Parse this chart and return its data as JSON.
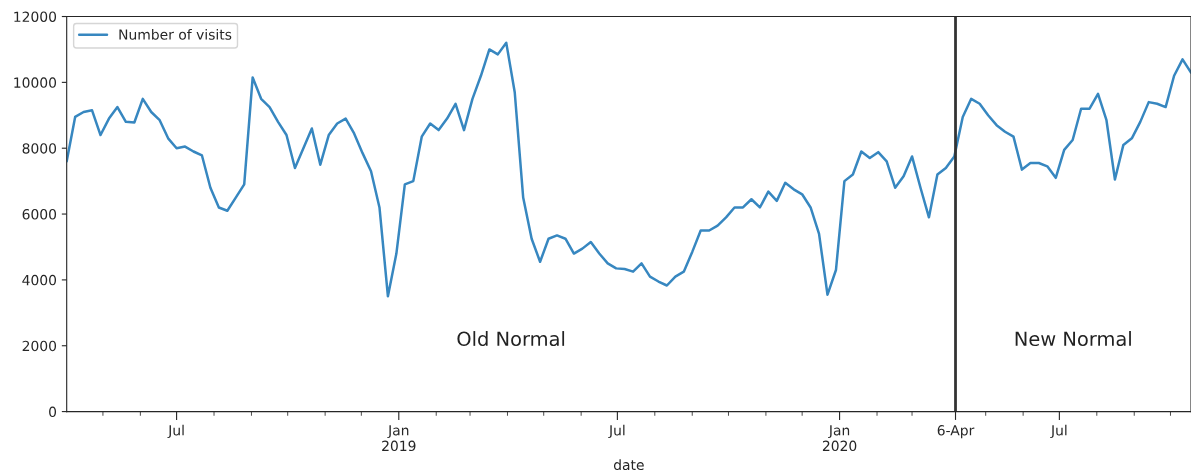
{
  "chart_data": {
    "type": "line",
    "xlabel": "date",
    "x": [
      "2018-04-01",
      "2018-04-08",
      "2018-04-15",
      "2018-04-22",
      "2018-04-29",
      "2018-05-06",
      "2018-05-13",
      "2018-05-20",
      "2018-05-27",
      "2018-06-03",
      "2018-06-10",
      "2018-06-17",
      "2018-06-24",
      "2018-07-01",
      "2018-07-08",
      "2018-07-15",
      "2018-07-22",
      "2018-07-29",
      "2018-08-05",
      "2018-08-12",
      "2018-08-19",
      "2018-08-26",
      "2018-09-02",
      "2018-09-09",
      "2018-09-16",
      "2018-09-23",
      "2018-09-30",
      "2018-10-07",
      "2018-10-14",
      "2018-10-21",
      "2018-10-28",
      "2018-11-04",
      "2018-11-11",
      "2018-11-18",
      "2018-11-25",
      "2018-12-02",
      "2018-12-09",
      "2018-12-16",
      "2018-12-23",
      "2018-12-30",
      "2019-01-06",
      "2019-01-13",
      "2019-01-20",
      "2019-01-27",
      "2019-02-03",
      "2019-02-10",
      "2019-02-17",
      "2019-02-24",
      "2019-03-03",
      "2019-03-10",
      "2019-03-17",
      "2019-03-24",
      "2019-03-31",
      "2019-04-07",
      "2019-04-14",
      "2019-04-21",
      "2019-04-28",
      "2019-05-05",
      "2019-05-12",
      "2019-05-19",
      "2019-05-26",
      "2019-06-02",
      "2019-06-09",
      "2019-06-16",
      "2019-06-23",
      "2019-06-30",
      "2019-07-07",
      "2019-07-14",
      "2019-07-21",
      "2019-07-28",
      "2019-08-04",
      "2019-08-11",
      "2019-08-18",
      "2019-08-25",
      "2019-09-01",
      "2019-09-08",
      "2019-09-15",
      "2019-09-22",
      "2019-09-29",
      "2019-10-06",
      "2019-10-13",
      "2019-10-20",
      "2019-10-27",
      "2019-11-03",
      "2019-11-10",
      "2019-11-17",
      "2019-11-24",
      "2019-12-01",
      "2019-12-08",
      "2019-12-15",
      "2019-12-22",
      "2019-12-29",
      "2020-01-05",
      "2020-01-12",
      "2020-01-19",
      "2020-01-26",
      "2020-02-02",
      "2020-02-09",
      "2020-02-16",
      "2020-02-23",
      "2020-03-01",
      "2020-03-08",
      "2020-03-15",
      "2020-03-22",
      "2020-03-29",
      "2020-04-05",
      "2020-04-12",
      "2020-04-19",
      "2020-04-26",
      "2020-05-03",
      "2020-05-10",
      "2020-05-17",
      "2020-05-24",
      "2020-05-31",
      "2020-06-07",
      "2020-06-14",
      "2020-06-21",
      "2020-06-28",
      "2020-07-05",
      "2020-07-12",
      "2020-07-19",
      "2020-07-26",
      "2020-08-02",
      "2020-08-09",
      "2020-08-16",
      "2020-08-23",
      "2020-08-30",
      "2020-09-06",
      "2020-09-13",
      "2020-09-20",
      "2020-09-27",
      "2020-10-04",
      "2020-10-11",
      "2020-10-18"
    ],
    "series": [
      {
        "name": "Number of visits",
        "color": "#3787c0",
        "values": [
          7600,
          8950,
          9100,
          9150,
          8400,
          8900,
          9250,
          8800,
          8780,
          9500,
          9100,
          8850,
          8300,
          8000,
          8050,
          7900,
          7780,
          6800,
          6200,
          6100,
          6500,
          6900,
          10150,
          9500,
          9250,
          8800,
          8400,
          7400,
          8000,
          8600,
          7500,
          8400,
          8750,
          8900,
          8450,
          7850,
          7300,
          6200,
          3500,
          4800,
          6900,
          7000,
          8350,
          8750,
          8550,
          8900,
          9350,
          8550,
          9500,
          10200,
          11000,
          10850,
          11200,
          9700,
          6500,
          5250,
          4550,
          5250,
          5350,
          5250,
          4800,
          4950,
          5150,
          4800,
          4500,
          4350,
          4330,
          4250,
          4500,
          4100,
          3950,
          3830,
          4100,
          4250,
          4850,
          5500,
          5500,
          5650,
          5900,
          6200,
          6200,
          6450,
          6200,
          6680,
          6400,
          6950,
          6750,
          6600,
          6200,
          5400,
          3550,
          4300,
          7000,
          7200,
          7900,
          7700,
          7880,
          7600,
          6800,
          7150,
          7750,
          6800,
          5900,
          7200,
          7400,
          7750,
          8950,
          9500,
          9350,
          9000,
          8700,
          8500,
          8350,
          7350,
          7550,
          7550,
          7450,
          7100,
          7950,
          8250,
          9200,
          9200,
          9650,
          8850,
          7050,
          8100,
          8300,
          8800,
          9400,
          9350,
          9250,
          10200,
          10700,
          10300
        ]
      }
    ],
    "xlim": [
      "2018-04-01",
      "2020-10-18"
    ],
    "xticks": [
      {
        "value": "2018-05-01",
        "label": null
      },
      {
        "value": "2018-06-01",
        "label": null
      },
      {
        "value": "2018-07-01",
        "label": "Jul"
      },
      {
        "value": "2018-08-01",
        "label": null
      },
      {
        "value": "2018-09-01",
        "label": null
      },
      {
        "value": "2018-10-01",
        "label": null
      },
      {
        "value": "2018-11-01",
        "label": null
      },
      {
        "value": "2018-12-01",
        "label": null
      },
      {
        "value": "2019-01-01",
        "label": "Jan\n2019"
      },
      {
        "value": "2019-02-01",
        "label": null
      },
      {
        "value": "2019-03-01",
        "label": null
      },
      {
        "value": "2019-04-01",
        "label": null
      },
      {
        "value": "2019-05-01",
        "label": null
      },
      {
        "value": "2019-06-01",
        "label": null
      },
      {
        "value": "2019-07-01",
        "label": "Jul"
      },
      {
        "value": "2019-08-01",
        "label": null
      },
      {
        "value": "2019-09-01",
        "label": null
      },
      {
        "value": "2019-10-01",
        "label": null
      },
      {
        "value": "2019-11-01",
        "label": null
      },
      {
        "value": "2019-12-01",
        "label": null
      },
      {
        "value": "2020-01-01",
        "label": "Jan\n2020"
      },
      {
        "value": "2020-02-01",
        "label": null
      },
      {
        "value": "2020-03-01",
        "label": null
      },
      {
        "value": "2020-04-06",
        "label": "6-Apr"
      },
      {
        "value": "2020-05-01",
        "label": null
      },
      {
        "value": "2020-06-01",
        "label": null
      },
      {
        "value": "2020-07-01",
        "label": "Jul"
      },
      {
        "value": "2020-08-01",
        "label": null
      },
      {
        "value": "2020-09-01",
        "label": null
      },
      {
        "value": "2020-10-01",
        "label": null
      }
    ],
    "ylim": [
      0,
      12000
    ],
    "yticks": [
      0,
      2000,
      4000,
      6000,
      8000,
      10000,
      12000
    ],
    "ref_lines": [
      {
        "axis": "x",
        "value": "2020-04-06",
        "color": "#333333"
      }
    ],
    "annotations": [
      "Old Normal",
      "New Normal"
    ],
    "legend": "top left",
    "grid": false,
    "marker": "none",
    "line_style": "solid"
  }
}
